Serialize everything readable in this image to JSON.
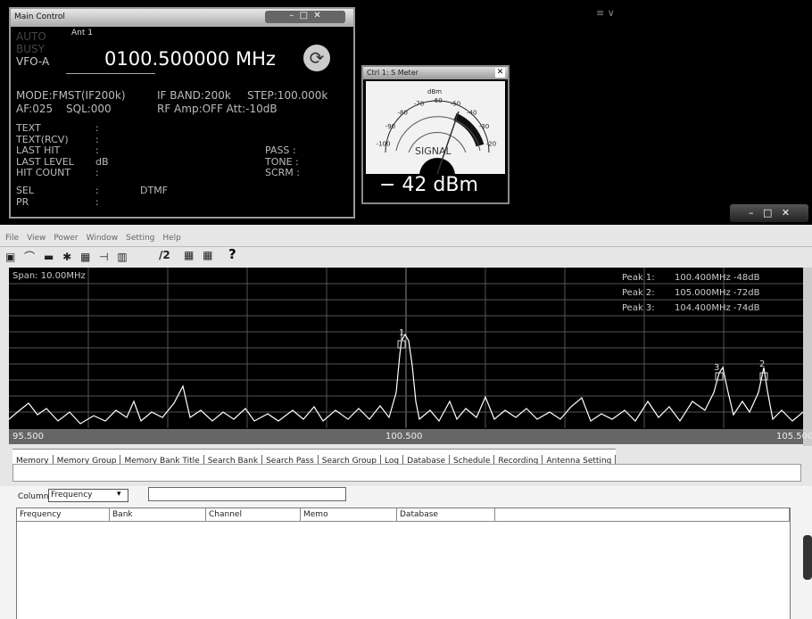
{
  "main_control": {
    "title": "Main Control",
    "status": [
      "AUTO",
      "BUSY",
      "VFO-A"
    ],
    "antenna": "Ant 1",
    "frequency": "0100.500000 MHz",
    "line1": [
      "MODE:FMST(IF200k)",
      "IF BAND:200k",
      "STEP:100.000k"
    ],
    "line2": [
      "AF:025",
      "SQL:000",
      "RF Amp:OFF Att:-10dB"
    ],
    "fields": [
      {
        "label": "TEXT",
        "value": ":"
      },
      {
        "label": "TEXT(RCV)",
        "value": ":"
      },
      {
        "label": "LAST HIT",
        "value": ":"
      },
      {
        "label": "LAST LEVEL",
        "value": "dB"
      },
      {
        "label": "HIT COUNT",
        "value": ":"
      },
      {
        "label": "SEL",
        "value": ":"
      },
      {
        "label": "PR",
        "value": ":"
      }
    ],
    "extra": "DTMF",
    "right_fields": [
      "PASS :",
      "TONE :",
      "SCRM :"
    ]
  },
  "s_meter": {
    "title": "Ctrl 1: S Meter",
    "unit": "dBm",
    "scale": [
      "-100",
      "-90",
      "-80",
      "-70",
      "-60",
      "-50",
      "-40",
      "-30",
      "-20"
    ],
    "label": "SIGNAL",
    "reading": "− 42 dBm"
  },
  "menu": [
    "File",
    "View",
    "Power",
    "Window",
    "Setting",
    "Help"
  ],
  "toolbar": {
    "half": "/2",
    "help": "?"
  },
  "spectrum": {
    "span": "Span: 10.00MHz",
    "peaks": [
      {
        "label": "Peak 1:",
        "value": "100.400MHz -48dB"
      },
      {
        "label": "Peak 2:",
        "value": "105.000MHz -72dB"
      },
      {
        "label": "Peak 3:",
        "value": "104.400MHz -74dB"
      }
    ],
    "x_labels": [
      "95.500",
      "100.500",
      "105.500"
    ],
    "markers": [
      "1",
      "2",
      "3"
    ]
  },
  "tabs": [
    "Memory",
    "Memory Group",
    "Memory Bank Title",
    "Search Bank",
    "Search Pass",
    "Search Group",
    "Log",
    "Database",
    "Schedule",
    "Recording",
    "Antenna Setting"
  ],
  "filter": {
    "label": "Column",
    "selected": "Frequency"
  },
  "table": {
    "headers": [
      "Frequency",
      "Bank",
      "Channel",
      "Memo",
      "Database"
    ]
  }
}
